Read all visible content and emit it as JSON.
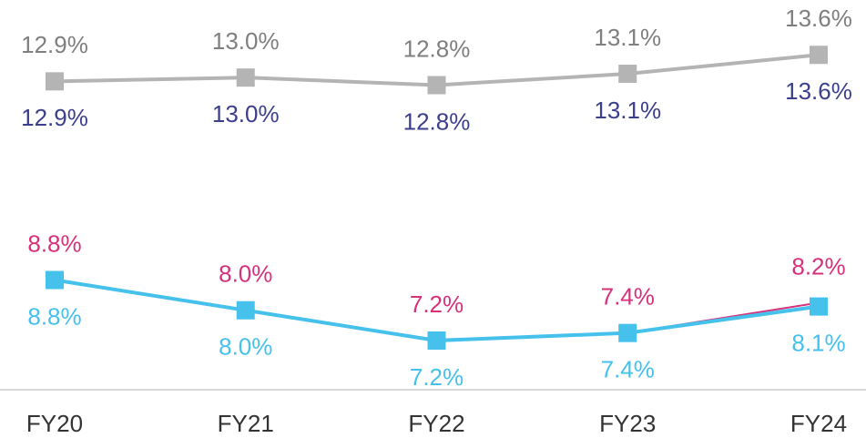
{
  "chart_data": {
    "type": "line",
    "categories": [
      "FY20",
      "FY21",
      "FY22",
      "FY23",
      "FY24"
    ],
    "ylim": [
      4.75,
      15.05
    ],
    "y2lim": [
      5.9,
      16.2
    ],
    "series": [
      {
        "color": "#3b3f8c",
        "values": [
          12.9,
          13.0,
          12.8,
          13.1,
          13.6
        ],
        "value_labels": [
          "12.9%",
          "13.0%",
          "12.8%",
          "13.1%",
          "13.6%"
        ],
        "label_position": "below"
      },
      {
        "color": "#b4b4b4",
        "marker": "square",
        "values": [
          12.9,
          13.0,
          12.8,
          13.1,
          13.6
        ],
        "value_labels": [
          "12.9%",
          "13.0%",
          "12.8%",
          "13.1%",
          "13.6%"
        ],
        "label_position": "above"
      },
      {
        "color": "#d6317a",
        "axis": "y2",
        "values": [
          8.8,
          8.0,
          7.2,
          7.4,
          8.2
        ],
        "value_labels": [
          "8.8%",
          "8.0%",
          "7.2%",
          "7.4%",
          "8.2%"
        ],
        "label_position": "above"
      },
      {
        "color": "#45c1ec",
        "axis": "y2",
        "marker": "square",
        "values": [
          8.8,
          8.0,
          7.2,
          7.4,
          8.1
        ],
        "value_labels": [
          "8.8%",
          "8.0%",
          "7.2%",
          "7.4%",
          "8.1%"
        ],
        "label_position": "below"
      }
    ]
  }
}
